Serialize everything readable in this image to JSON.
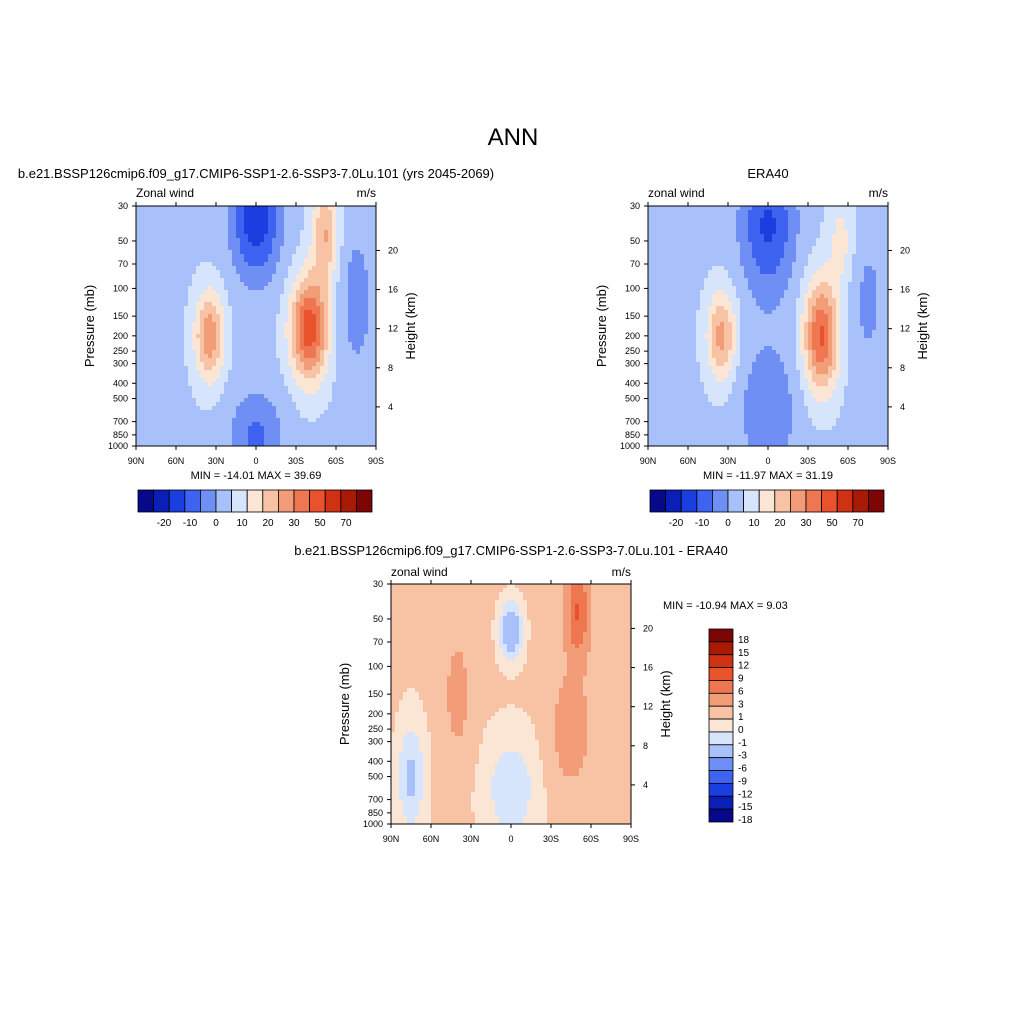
{
  "page_title": "ANN",
  "chart_data": [
    {
      "type": "heatmap",
      "title": "b.e21.BSSP126cmip6.f09_g17.CMIP6-SSP1-2.6-SSP3-7.0Lu.101 (yrs 2045-2069)",
      "left_label": "Zonal wind",
      "right_label": "m/s",
      "ylabel": "Pressure (mb)",
      "ylabel_right": "Height (km)",
      "x_ticks": [
        "90N",
        "60N",
        "30N",
        "0",
        "30S",
        "60S",
        "90S"
      ],
      "y_ticks": [
        30,
        50,
        70,
        100,
        150,
        200,
        250,
        300,
        400,
        500,
        700,
        850,
        1000
      ],
      "height_ticks": [
        4,
        8,
        12,
        16,
        20
      ],
      "stats": "MIN = -14.01  MAX =  39.69",
      "colorbar_labels": [
        "-20",
        "-10",
        "0",
        "10",
        "20",
        "30",
        "50",
        "70"
      ],
      "colorbar_colors": [
        "#08088a",
        "#0a1fb8",
        "#1a3ee0",
        "#3d63f0",
        "#6f8ff5",
        "#a9c1fa",
        "#d6e5fb",
        "#fbe6d6",
        "#f8c3a5",
        "#f39c78",
        "#ee7650",
        "#e8532c",
        "#cf3212",
        "#a81a06",
        "#7c0606"
      ],
      "jets": [
        {
          "lat": -40,
          "p": 180,
          "value": 30,
          "pmin_reach": 30
        },
        {
          "lat": 35,
          "p": 180,
          "value": 22
        }
      ],
      "easterlies": [
        {
          "lat": 0,
          "p": 30,
          "value": -14
        }
      ]
    },
    {
      "type": "heatmap",
      "title": "ERA40",
      "left_label": "zonal wind",
      "right_label": "m/s",
      "ylabel": "Pressure (mb)",
      "ylabel_right": "Height (km)",
      "x_ticks": [
        "90N",
        "60N",
        "30N",
        "0",
        "30S",
        "60S",
        "90S"
      ],
      "y_ticks": [
        30,
        50,
        70,
        100,
        150,
        200,
        250,
        300,
        400,
        500,
        700,
        850,
        1000
      ],
      "height_ticks": [
        4,
        8,
        12,
        16,
        20
      ],
      "stats": "MIN = -11.97  MAX =  31.19",
      "colorbar_labels": [
        "-20",
        "-10",
        "0",
        "10",
        "20",
        "30",
        "50",
        "70"
      ],
      "colorbar_colors": [
        "#08088a",
        "#0a1fb8",
        "#1a3ee0",
        "#3d63f0",
        "#6f8ff5",
        "#a9c1fa",
        "#d6e5fb",
        "#fbe6d6",
        "#f8c3a5",
        "#f39c78",
        "#ee7650",
        "#e8532c",
        "#cf3212",
        "#a81a06",
        "#7c0606"
      ],
      "jets": [
        {
          "lat": -40,
          "p": 200,
          "value": 28
        },
        {
          "lat": 35,
          "p": 180,
          "value": 20
        }
      ],
      "easterlies": [
        {
          "lat": 0,
          "p": 30,
          "value": -12
        }
      ]
    },
    {
      "type": "heatmap",
      "title": "b.e21.BSSP126cmip6.f09_g17.CMIP6-SSP1-2.6-SSP3-7.0Lu.101 - ERA40",
      "left_label": "zonal wind",
      "right_label": "m/s",
      "ylabel": "Pressure (mb)",
      "ylabel_right": "Height (km)",
      "x_ticks": [
        "90N",
        "60N",
        "30N",
        "0",
        "30S",
        "60S",
        "90S"
      ],
      "y_ticks": [
        30,
        50,
        70,
        100,
        150,
        200,
        250,
        300,
        400,
        500,
        700,
        850,
        1000
      ],
      "height_ticks": [
        4,
        8,
        12,
        16,
        20
      ],
      "stats": "MIN = -10.94  MAX =   9.03",
      "colorbar_labels": [
        "18",
        "15",
        "12",
        "9",
        "6",
        "3",
        "1",
        "0",
        "-1",
        "-3",
        "-6",
        "-9",
        "-12",
        "-15",
        "-18"
      ],
      "colorbar_colors": [
        "#7c0606",
        "#a81a06",
        "#cf3212",
        "#e8532c",
        "#ee7650",
        "#f39c78",
        "#f8c3a5",
        "#fbe6d6",
        "#d6e5fb",
        "#a9c1fa",
        "#6f8ff5",
        "#3d63f0",
        "#1a3ee0",
        "#0a1fb8",
        "#08088a"
      ]
    }
  ]
}
